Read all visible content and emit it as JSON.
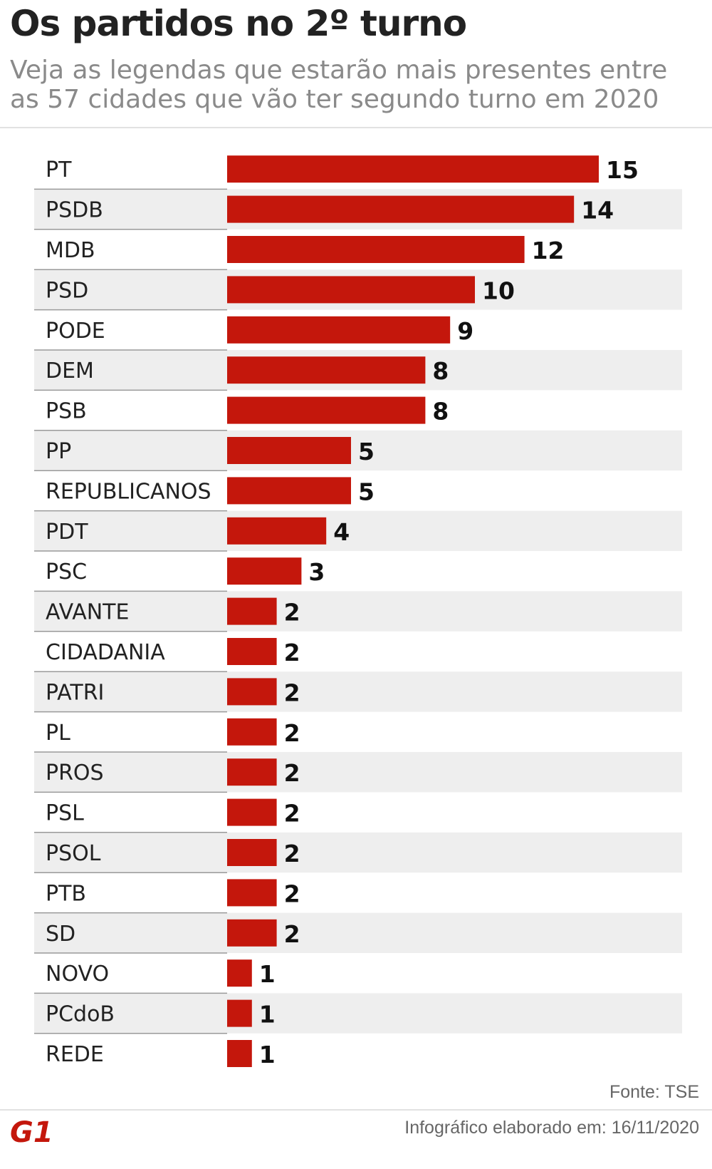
{
  "header": {
    "title": "Os partidos no 2º turno",
    "subtitle": "Veja as legendas que estarão mais presentes entre as 57 cidades que vão ter segundo turno em 2020"
  },
  "chart_data": {
    "type": "bar",
    "orientation": "horizontal",
    "title": "Os partidos no 2º turno",
    "categories": [
      "PT",
      "PSDB",
      "MDB",
      "PSD",
      "PODE",
      "DEM",
      "PSB",
      "PP",
      "REPUBLICANOS",
      "PDT",
      "PSC",
      "AVANTE",
      "CIDADANIA",
      "PATRI",
      "PL",
      "PROS",
      "PSL",
      "PSOL",
      "PTB",
      "SD",
      "NOVO",
      "PCdoB",
      "REDE"
    ],
    "values": [
      15,
      14,
      12,
      10,
      9,
      8,
      8,
      5,
      5,
      4,
      3,
      2,
      2,
      2,
      2,
      2,
      2,
      2,
      2,
      2,
      1,
      1,
      1
    ],
    "xlim": [
      0,
      15
    ],
    "xlabel": "",
    "ylabel": "",
    "grid": false
  },
  "footer": {
    "source": "Fonte: TSE",
    "credit": "Infográfico elaborado em: 16/11/2020",
    "logo_text": "G1"
  },
  "colors": {
    "bar": "#c4170c",
    "stripe": "#eeeeee",
    "logo": "#c4170c"
  }
}
